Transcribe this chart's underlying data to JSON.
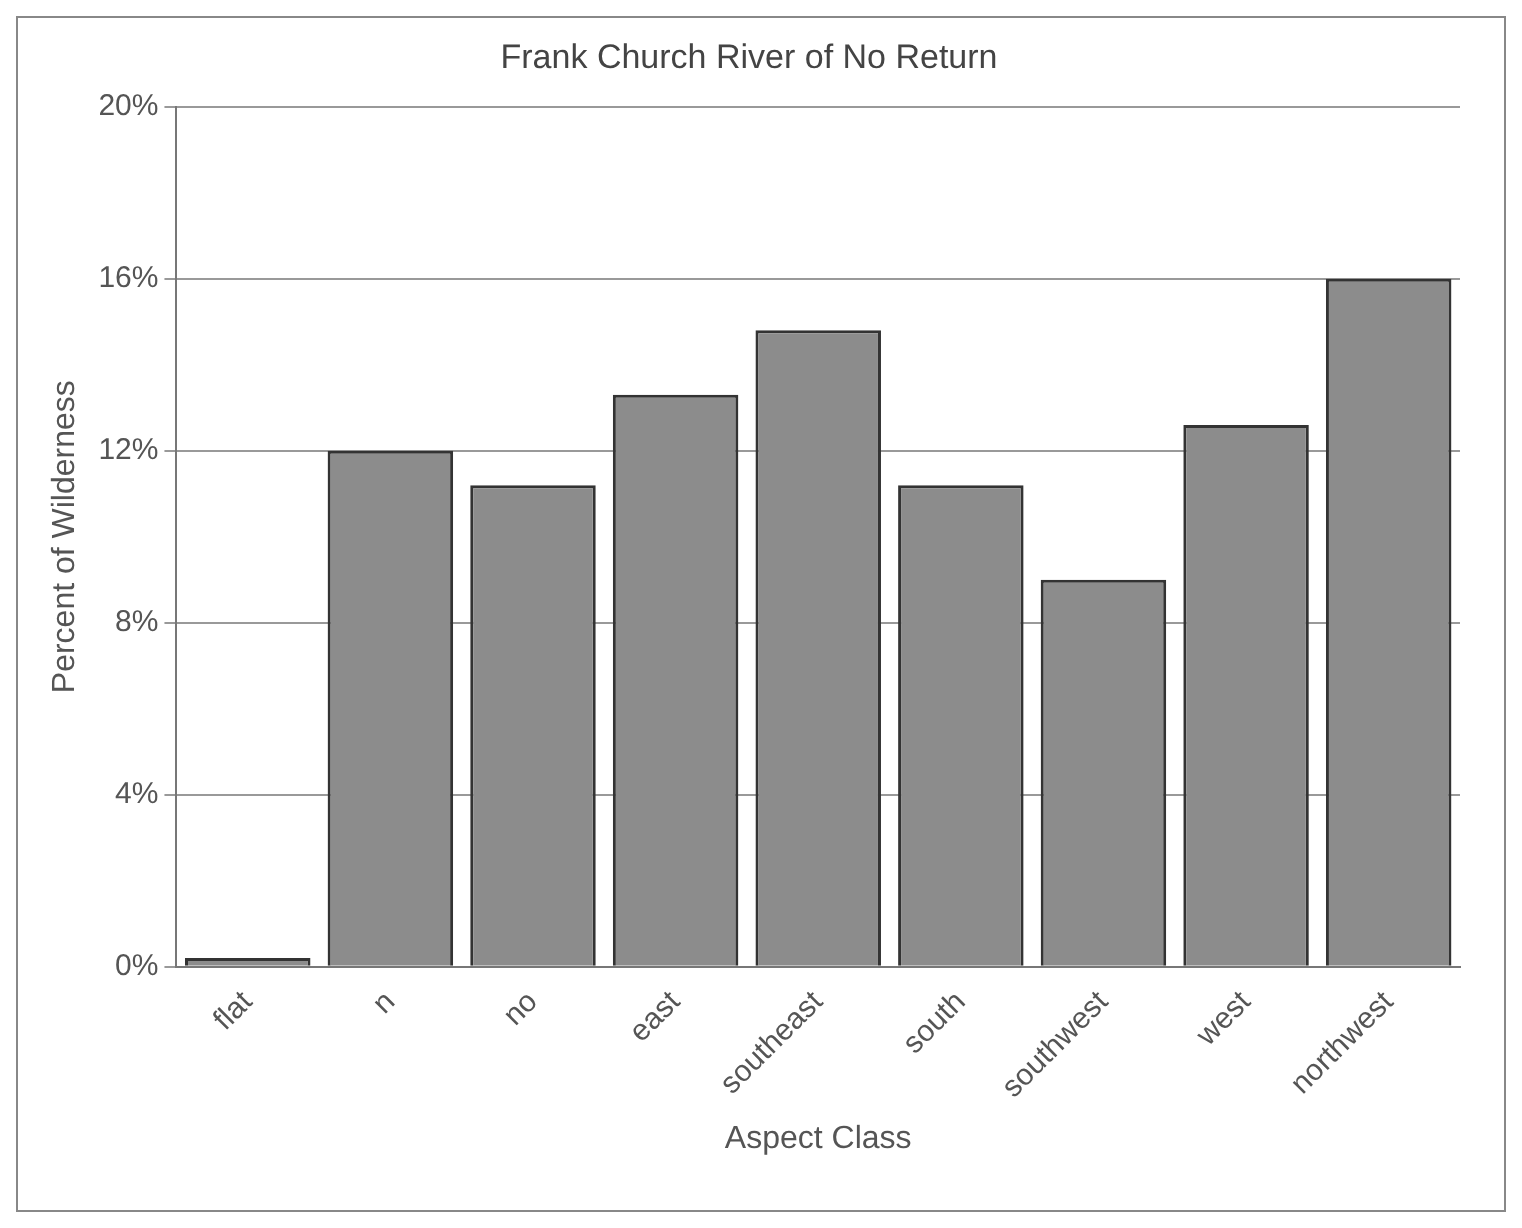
{
  "chart_data": {
    "type": "bar",
    "title": "Frank Church River of No Return",
    "xlabel": "Aspect Class",
    "ylabel": "Percent of Wilderness",
    "categories": [
      "flat",
      "n",
      "no",
      "east",
      "southeast",
      "south",
      "southwest",
      "west",
      "northwest"
    ],
    "values": [
      0.2,
      12.0,
      11.2,
      13.3,
      14.8,
      11.2,
      9.0,
      12.6,
      16.0
    ],
    "color": "#8c8c8c",
    "ylim": [
      0,
      20
    ],
    "yticks": [
      {
        "value": 0,
        "label": "0%"
      },
      {
        "value": 4,
        "label": "4%"
      },
      {
        "value": 8,
        "label": "8%"
      },
      {
        "value": 12,
        "label": "12%"
      },
      {
        "value": 16,
        "label": "16%"
      },
      {
        "value": 20,
        "label": "20%"
      }
    ],
    "grid": "y",
    "legend": false
  }
}
